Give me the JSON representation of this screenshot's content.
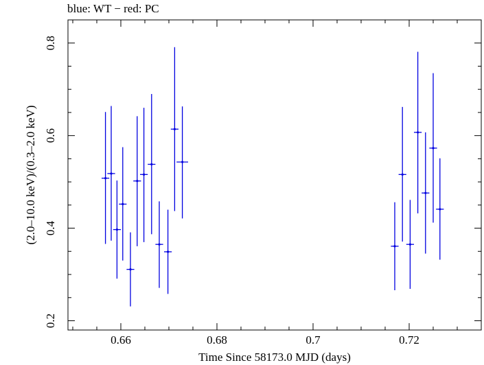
{
  "chart_data": {
    "type": "scatter",
    "title": "blue: WT − red: PC",
    "xlabel": "Time Since 58173.0 MJD (days)",
    "ylabel": "(2.0–10.0 keV)/(0.3–2.0 keV)",
    "xlim": [
      0.649,
      0.735
    ],
    "ylim": [
      0.18,
      0.85
    ],
    "x_ticks": [
      0.66,
      0.68,
      0.7,
      0.72
    ],
    "x_tick_labels": [
      "0.66",
      "0.68",
      "0.7",
      "0.72"
    ],
    "y_ticks": [
      0.2,
      0.4,
      0.6,
      0.8
    ],
    "y_tick_labels": [
      "0.2",
      "0.4",
      "0.6",
      "0.8"
    ],
    "grid": false,
    "series": [
      {
        "color": "#0000e0",
        "points": [
          {
            "x": 0.6568,
            "xerr": 0.0008,
            "y": 0.508,
            "ylo": 0.366,
            "yhi": 0.651
          },
          {
            "x": 0.658,
            "xerr": 0.0008,
            "y": 0.518,
            "ylo": 0.373,
            "yhi": 0.664
          },
          {
            "x": 0.6592,
            "xerr": 0.0008,
            "y": 0.397,
            "ylo": 0.291,
            "yhi": 0.503
          },
          {
            "x": 0.6604,
            "xerr": 0.0008,
            "y": 0.452,
            "ylo": 0.33,
            "yhi": 0.575
          },
          {
            "x": 0.662,
            "xerr": 0.0008,
            "y": 0.311,
            "ylo": 0.231,
            "yhi": 0.391
          },
          {
            "x": 0.6634,
            "xerr": 0.0008,
            "y": 0.502,
            "ylo": 0.361,
            "yhi": 0.642
          },
          {
            "x": 0.6648,
            "xerr": 0.0008,
            "y": 0.516,
            "ylo": 0.37,
            "yhi": 0.66
          },
          {
            "x": 0.6664,
            "xerr": 0.0008,
            "y": 0.538,
            "ylo": 0.387,
            "yhi": 0.69
          },
          {
            "x": 0.668,
            "xerr": 0.0008,
            "y": 0.365,
            "ylo": 0.271,
            "yhi": 0.458
          },
          {
            "x": 0.6698,
            "xerr": 0.0008,
            "y": 0.349,
            "ylo": 0.258,
            "yhi": 0.44
          },
          {
            "x": 0.6712,
            "xerr": 0.0008,
            "y": 0.614,
            "ylo": 0.437,
            "yhi": 0.791
          },
          {
            "x": 0.6728,
            "xerr": 0.0012,
            "y": 0.543,
            "ylo": 0.421,
            "yhi": 0.663
          },
          {
            "x": 0.717,
            "xerr": 0.0008,
            "y": 0.361,
            "ylo": 0.266,
            "yhi": 0.456
          },
          {
            "x": 0.7186,
            "xerr": 0.0008,
            "y": 0.516,
            "ylo": 0.371,
            "yhi": 0.662
          },
          {
            "x": 0.7202,
            "xerr": 0.0008,
            "y": 0.365,
            "ylo": 0.269,
            "yhi": 0.461
          },
          {
            "x": 0.7218,
            "xerr": 0.0008,
            "y": 0.607,
            "ylo": 0.432,
            "yhi": 0.781
          },
          {
            "x": 0.7234,
            "xerr": 0.0008,
            "y": 0.476,
            "ylo": 0.345,
            "yhi": 0.607
          },
          {
            "x": 0.725,
            "xerr": 0.0008,
            "y": 0.573,
            "ylo": 0.412,
            "yhi": 0.735
          },
          {
            "x": 0.7264,
            "xerr": 0.0008,
            "y": 0.441,
            "ylo": 0.332,
            "yhi": 0.551
          }
        ]
      }
    ]
  }
}
